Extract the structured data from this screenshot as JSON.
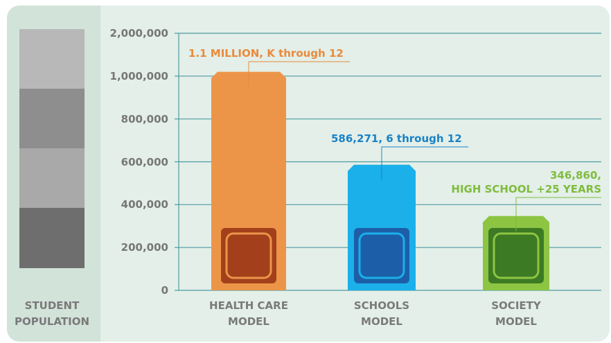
{
  "chart_data": {
    "type": "bar",
    "side_label": "STUDENT\nPOPULATION",
    "categories": [
      "HEALTH CARE\nMODEL",
      "SCHOOLS\nMODEL",
      "SOCIETY\nMODEL"
    ],
    "values": [
      1100000,
      586271,
      346860
    ],
    "value_labels": [
      "1.1 MILLION, K through 12",
      "586,271, 6 through 12",
      "346,860,\nHIGH SCHOOL +25 YEARS"
    ],
    "colors": [
      "#ec9549",
      "#1bb0ea",
      "#8dc543"
    ],
    "label_colors": [
      "#ea8a3c",
      "#1a82c6",
      "#80bb3f"
    ],
    "ylim": [
      0,
      2000000
    ],
    "yticks": [
      0,
      {
        "value": 200000,
        "label": "200,000"
      },
      {
        "value": 400000,
        "label": "400,000"
      },
      {
        "value": 600000,
        "label": "600,000"
      },
      {
        "value": 800000,
        "label": "800,000"
      },
      {
        "value": 1000000,
        "label": "1,000,000"
      },
      {
        "value": 2000000,
        "label": "2,000,000"
      }
    ],
    "grid": true
  }
}
